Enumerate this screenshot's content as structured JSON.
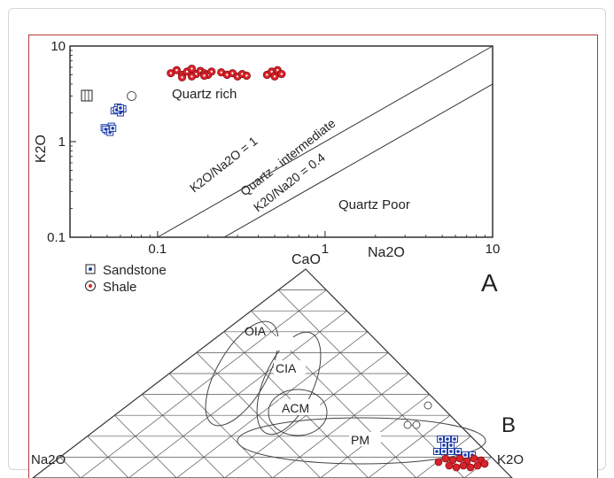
{
  "chart_data": [
    {
      "panel": "A",
      "type": "scatter",
      "xlabel": "Na2O",
      "ylabel": "K2O",
      "x_scale": "log",
      "y_scale": "log",
      "xlim": [
        0.03,
        10
      ],
      "ylim": [
        0.1,
        10
      ],
      "x_ticks": [
        "0.1",
        "1",
        "10"
      ],
      "y_ticks": [
        "0.1",
        "1",
        "10"
      ],
      "lines": [
        {
          "label": "K2O/Na2O = 1",
          "ratio": 1
        },
        {
          "label": "Quartz - intermediate",
          "label2": "K20/Na20 = 0.4",
          "ratio": 0.4
        }
      ],
      "fields": [
        "Quartz rich",
        "Quartz Poor"
      ],
      "series": [
        {
          "type": "Sandstone",
          "color": "#1f3fa8",
          "points": [
            [
              0.055,
              2.1
            ],
            [
              0.058,
              2.3
            ],
            [
              0.06,
              2.0
            ],
            [
              0.062,
              2.2
            ],
            [
              0.057,
              2.15
            ],
            [
              0.06,
              2.25
            ],
            [
              0.048,
              1.4
            ],
            [
              0.05,
              1.3
            ],
            [
              0.053,
              1.45
            ],
            [
              0.049,
              1.35
            ],
            [
              0.052,
              1.25
            ],
            [
              0.054,
              1.38
            ]
          ]
        },
        {
          "type": "Shale",
          "color": "#d9232a",
          "points": [
            [
              0.12,
              5.2
            ],
            [
              0.13,
              5.6
            ],
            [
              0.14,
              5.0
            ],
            [
              0.15,
              5.4
            ],
            [
              0.16,
              5.8
            ],
            [
              0.17,
              5.1
            ],
            [
              0.18,
              5.5
            ],
            [
              0.19,
              5.2
            ],
            [
              0.2,
              5.0
            ],
            [
              0.21,
              5.4
            ],
            [
              0.24,
              5.3
            ],
            [
              0.26,
              5.0
            ],
            [
              0.28,
              5.2
            ],
            [
              0.3,
              4.8
            ],
            [
              0.32,
              5.1
            ],
            [
              0.34,
              4.9
            ],
            [
              0.45,
              5.0
            ],
            [
              0.48,
              5.4
            ],
            [
              0.5,
              4.8
            ],
            [
              0.52,
              5.6
            ],
            [
              0.55,
              5.1
            ],
            [
              0.14,
              4.7
            ],
            [
              0.16,
              4.8
            ],
            [
              0.19,
              4.9
            ]
          ]
        }
      ],
      "open_symbols": [
        [
          0.07,
          3.0
        ]
      ]
    },
    {
      "panel": "B",
      "type": "ternary",
      "apices": {
        "top": "CaO",
        "left": "Na2O",
        "right": "K2O"
      },
      "fields": [
        "OIA",
        "CIA",
        "ACM",
        "PM"
      ],
      "legend": [
        {
          "symbol": "square-dot",
          "label": "Sandstone",
          "color": "#1f3fa8"
        },
        {
          "symbol": "circle-dot",
          "label": "Shale",
          "color": "#d9232a"
        }
      ]
    }
  ]
}
